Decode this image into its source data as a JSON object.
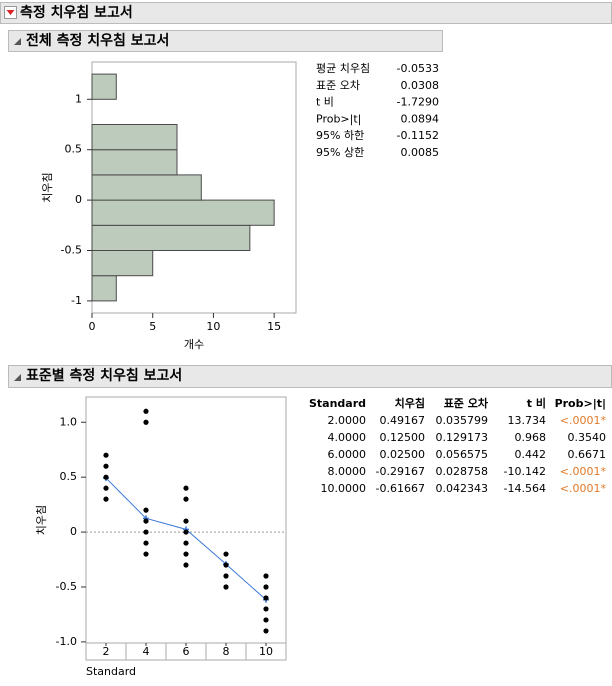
{
  "report": {
    "title": "측정 치우침 보고서"
  },
  "overall": {
    "title": "전체 측정 치우침 보고서",
    "stats": [
      [
        "평균 치우침",
        "-0.0533"
      ],
      [
        "표준 오차",
        "0.0308"
      ],
      [
        "t 비",
        "-1.7290"
      ],
      [
        "Prob>|t|",
        "0.0894"
      ],
      [
        "95% 하한",
        "-0.1152"
      ],
      [
        "95% 상한",
        "0.0085"
      ]
    ]
  },
  "by_standard": {
    "title": "표준별 측정 치우침 보고서",
    "columns": [
      "Standard",
      "치우침",
      "표준 오차",
      "t 비",
      "Prob>|t|"
    ],
    "rows": [
      [
        "2.0000",
        "0.49167",
        "0.035799",
        "13.734",
        "<.0001*"
      ],
      [
        "4.0000",
        "0.12500",
        "0.129173",
        "0.968",
        "0.3540"
      ],
      [
        "6.0000",
        "0.02500",
        "0.056575",
        "0.442",
        "0.6671"
      ],
      [
        "8.0000",
        "-0.29167",
        "0.028758",
        "-10.142",
        "<.0001*"
      ],
      [
        "10.0000",
        "-0.61667",
        "0.042343",
        "-14.564",
        "<.0001*"
      ]
    ],
    "highlight_color": "#e07a2a"
  },
  "chart_data": [
    {
      "type": "histogram",
      "orientation": "horizontal",
      "xlabel": "개수",
      "ylabel": "치우침",
      "bins": [
        -1,
        -0.75,
        -0.5,
        -0.25,
        0,
        0.25,
        0.5,
        0.75,
        1,
        1.25
      ],
      "counts": [
        2,
        5,
        13,
        15,
        9,
        7,
        7,
        0,
        2
      ],
      "color": "#bccbbb",
      "xlim": [
        0,
        16.8
      ],
      "xticks": [
        0,
        5,
        10,
        15
      ],
      "ylim": [
        -1.12,
        1.37
      ],
      "yticks": [
        -1,
        -0.5,
        0,
        0.5,
        1
      ]
    },
    {
      "type": "scatter",
      "xlabel": "Standard",
      "ylabel": "치우침",
      "points": {
        "color": "#000000",
        "x": [
          2,
          2,
          2,
          2,
          2,
          4,
          4,
          4,
          4,
          4,
          4,
          4,
          6,
          6,
          6,
          6,
          6,
          6,
          6,
          8,
          8,
          8,
          8,
          10,
          10,
          10,
          10,
          10,
          10
        ],
        "y": [
          0.7,
          0.6,
          0.5,
          0.4,
          0.3,
          1.1,
          1.0,
          0.2,
          0.1,
          0,
          -0.1,
          -0.2,
          0.4,
          0.3,
          0.1,
          0,
          -0.1,
          -0.2,
          -0.3,
          -0.2,
          -0.3,
          -0.4,
          -0.5,
          -0.4,
          -0.5,
          -0.6,
          -0.7,
          -0.8,
          -0.9
        ]
      },
      "means": {
        "color": "#3b78d8",
        "x": [
          2,
          4,
          6,
          8,
          10
        ],
        "values": [
          0.49167,
          0.125,
          0.025,
          -0.29167,
          -0.61667
        ]
      },
      "xlim": [
        1,
        11
      ],
      "xticks": [
        2,
        4,
        6,
        8,
        10
      ],
      "ylim": [
        -1.01,
        1.23
      ],
      "yticks": [
        {
          "value": -1,
          "label": "-1.0"
        },
        -0.5,
        0,
        0.5,
        {
          "value": 1,
          "label": "1.0"
        }
      ],
      "reference_line": 0
    }
  ]
}
